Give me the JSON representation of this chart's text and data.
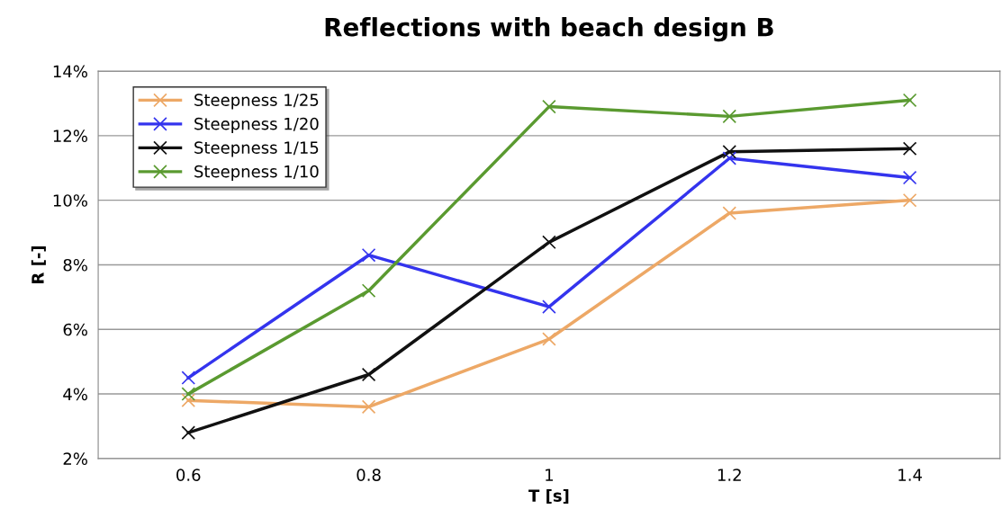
{
  "chart_data": {
    "type": "line",
    "title": "Reflections with beach design B",
    "xlabel": "T [s]",
    "ylabel": "R [-]",
    "x": [
      0.6,
      0.8,
      1,
      1.2,
      1.4
    ],
    "xlim": [
      0.5,
      1.5
    ],
    "xticks": [
      0.6,
      0.8,
      1,
      1.2,
      1.4
    ],
    "series": [
      {
        "name": "Steepness 1/25",
        "color": "#eda866",
        "values": [
          3.8,
          3.6,
          5.7,
          9.6,
          10.0
        ]
      },
      {
        "name": "Steepness 1/20",
        "color": "#3434ee",
        "values": [
          4.5,
          8.3,
          6.7,
          11.3,
          10.7
        ]
      },
      {
        "name": "Steepness 1/15",
        "color": "#111111",
        "values": [
          2.8,
          4.6,
          8.7,
          11.5,
          11.6
        ]
      },
      {
        "name": "Steepness 1/10",
        "color": "#5a9a30",
        "values": [
          4.0,
          7.2,
          12.9,
          12.6,
          13.1
        ]
      }
    ],
    "ylim": [
      2,
      14
    ],
    "yticks": [
      {
        "value": 2,
        "label": "2%"
      },
      {
        "value": 4,
        "label": "4%"
      },
      {
        "value": 6,
        "label": "6%"
      },
      {
        "value": 8,
        "label": "8%"
      },
      {
        "value": 10,
        "label": "10%"
      },
      {
        "value": 12,
        "label": "12%"
      },
      {
        "value": 14,
        "label": "14%"
      }
    ],
    "grid": "y",
    "legend": "top left",
    "marker": "cross",
    "line_style": "solid"
  }
}
